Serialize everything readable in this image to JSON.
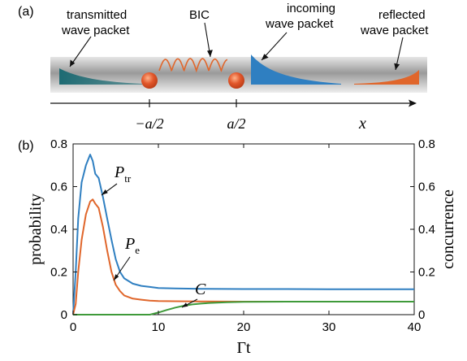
{
  "panel_a": {
    "label": "(a)",
    "transmitted_label": [
      "transmitted",
      "wave packet"
    ],
    "bic_label": "BIC",
    "incoming_label": [
      "incoming",
      "wave packet"
    ],
    "reflected_label": [
      "reflected",
      "wave packet"
    ],
    "x_tick_left": "−a/2",
    "x_tick_right": "a/2",
    "x_axis_label": "x",
    "colors": {
      "transmitted": "#1e6b73",
      "incoming": "#2f7fc1",
      "reflected": "#e0662b",
      "atom": "#e2572b",
      "waveguide": "#c8c8c8"
    }
  },
  "panel_b": {
    "label": "(b)"
  },
  "chart_data": {
    "type": "line",
    "xlabel": "Γt",
    "ylabel": "probability",
    "y2label": "concurrence",
    "xlim": [
      0,
      40
    ],
    "ylim": [
      0,
      0.8
    ],
    "y2lim": [
      0,
      0.8
    ],
    "xticks": [
      "0",
      "10",
      "20",
      "30",
      "40"
    ],
    "yticks": [
      "0",
      "0.2",
      "0.4",
      "0.6",
      "0.8"
    ],
    "y2ticks": [
      "0",
      "0.2",
      "0.4",
      "0.6",
      "0.8"
    ],
    "grid": false,
    "series": [
      {
        "name": "P_tr",
        "color": "#2f7fc1",
        "x": [
          0,
          0.3,
          0.6,
          1.0,
          1.5,
          2.0,
          2.3,
          2.6,
          3.0,
          3.5,
          4.0,
          4.5,
          5.0,
          5.5,
          6.0,
          7.0,
          8.0,
          9.0,
          10,
          12,
          15,
          20,
          25,
          30,
          35,
          40
        ],
        "y": [
          0,
          0.2,
          0.45,
          0.62,
          0.7,
          0.75,
          0.72,
          0.66,
          0.64,
          0.55,
          0.45,
          0.35,
          0.26,
          0.2,
          0.17,
          0.145,
          0.135,
          0.13,
          0.125,
          0.123,
          0.121,
          0.12,
          0.12,
          0.119,
          0.119,
          0.119
        ]
      },
      {
        "name": "P_e",
        "color": "#e0662b",
        "x": [
          0,
          0.3,
          0.6,
          1.0,
          1.5,
          2.0,
          2.3,
          2.6,
          3.0,
          3.5,
          4.0,
          4.5,
          5.0,
          5.5,
          6.0,
          7.0,
          8.0,
          9.0,
          10,
          12,
          15,
          20,
          25,
          30,
          35,
          40
        ],
        "y": [
          0,
          0.05,
          0.2,
          0.35,
          0.47,
          0.53,
          0.54,
          0.52,
          0.5,
          0.41,
          0.3,
          0.2,
          0.14,
          0.11,
          0.09,
          0.075,
          0.07,
          0.066,
          0.064,
          0.063,
          0.062,
          0.061,
          0.061,
          0.061,
          0.061,
          0.061
        ]
      },
      {
        "name": "C",
        "axis": "right",
        "color": "#3f9a3a",
        "x": [
          0,
          9.0,
          10,
          11,
          12,
          13,
          14,
          15,
          16,
          18,
          20,
          25,
          30,
          40
        ],
        "y": [
          0,
          0,
          0.01,
          0.022,
          0.033,
          0.042,
          0.048,
          0.052,
          0.055,
          0.058,
          0.06,
          0.061,
          0.061,
          0.061
        ]
      }
    ],
    "annotations": [
      "P_tr",
      "P_e",
      "C"
    ]
  }
}
